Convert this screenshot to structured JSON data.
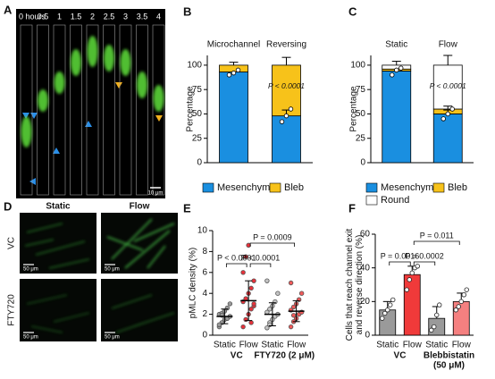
{
  "panel_labels": [
    "A",
    "B",
    "C",
    "D",
    "E",
    "F"
  ],
  "panel_a": {
    "time_labels": [
      "0 hours",
      "0.5",
      "1",
      "1.5",
      "2",
      "2.5",
      "3",
      "3.5",
      "4"
    ],
    "scale_bar": "10 μm"
  },
  "panel_d": {
    "columns": [
      "Static",
      "Flow"
    ],
    "rows": [
      "VC",
      "FTY720"
    ],
    "scale_bars": [
      "50 μm",
      "50 μm",
      "50 μm",
      "50 μm"
    ]
  },
  "chart_data": [
    {
      "type": "bar",
      "stacked": true,
      "categories": [
        "Microchannel",
        "Reversing"
      ],
      "ylabel": [
        "Percentage"
      ],
      "ylim": [
        0,
        110
      ],
      "yticks": [
        0,
        25,
        50,
        75,
        100
      ],
      "series": [
        {
          "name": "Mesenchymal",
          "color": "#1a8fe0",
          "values": [
            93,
            48
          ],
          "errors": [
            null,
            6
          ],
          "points": [
            [
              90,
              92,
              95
            ],
            [
              42,
              48,
              55
            ]
          ]
        },
        {
          "name": "Bleb",
          "color": "#f7c21a",
          "values": [
            7,
            52
          ],
          "errors": [
            3,
            8
          ]
        }
      ],
      "annotations": [
        "P < 0.0001"
      ]
    },
    {
      "type": "bar",
      "stacked": true,
      "categories": [
        "Static",
        "Flow"
      ],
      "ylabel": [
        "Percentage"
      ],
      "ylim": [
        0,
        110
      ],
      "yticks": [
        0,
        25,
        50,
        75,
        100
      ],
      "series": [
        {
          "name": "Mesenchymal",
          "color": "#1a8fe0",
          "values": [
            94,
            50
          ],
          "errors": [
            null,
            4
          ],
          "points": [
            [
              90,
              95,
              97
            ],
            [
              45,
              50,
              55
            ]
          ]
        },
        {
          "name": "Bleb",
          "color": "#f7c21a",
          "values": [
            2,
            5
          ],
          "errors": [
            null,
            3
          ]
        },
        {
          "name": "Round",
          "color": "#ffffff",
          "values": [
            4,
            45
          ],
          "errors": [
            4,
            10
          ]
        }
      ],
      "annotations": [
        "P < 0.0001"
      ]
    },
    {
      "type": "strip",
      "categories": [
        "Static",
        "Flow",
        "Static",
        "Flow"
      ],
      "groups": [
        [
          "VC"
        ],
        [
          "FTY720 (2 μM)"
        ]
      ],
      "ylabel": [
        "pMLC density (%)"
      ],
      "ylim": [
        0,
        10
      ],
      "yticks": [
        0,
        2,
        4,
        6,
        8,
        10
      ],
      "colors": [
        "#9a9a9a",
        "#e8313a",
        "#c4c4c4",
        "#f05a5a"
      ],
      "points": [
        [
          0.8,
          1.2,
          1.5,
          1.6,
          1.8,
          2.0,
          2.1,
          2.3,
          2.6,
          3.0,
          1.0,
          1.9
        ],
        [
          0.8,
          1.5,
          2.0,
          2.5,
          2.8,
          3.2,
          3.5,
          4.0,
          4.5,
          5.2,
          6.0,
          7.5,
          8.6,
          1.2,
          3.0
        ],
        [
          0.7,
          1.2,
          1.5,
          1.8,
          2.0,
          2.2,
          2.5,
          2.8,
          3.2,
          4.0,
          5.2,
          1.0
        ],
        [
          0.8,
          1.3,
          1.6,
          2.0,
          2.2,
          2.4,
          2.7,
          3.0,
          3.4,
          4.0,
          5.0,
          1.9
        ]
      ],
      "means": [
        1.8,
        3.3,
        2.0,
        2.3
      ],
      "sd": [
        0.7,
        1.9,
        1.1,
        1.0
      ],
      "comparisons": [
        {
          "between": [
            0,
            1
          ],
          "label": "P < 0.0001"
        },
        {
          "between": [
            1,
            2
          ],
          "label": "P < 0.0001"
        },
        {
          "between": [
            1,
            3
          ],
          "label": "P = 0.0009"
        }
      ]
    },
    {
      "type": "bar",
      "categories": [
        "Static",
        "Flow",
        "Static",
        "Flow"
      ],
      "groups": [
        [
          "VC"
        ],
        [
          "Blebbistatin",
          "(50 μM)"
        ]
      ],
      "ylabel": [
        "Cells that reach channel exit",
        "and reverse direction (%)"
      ],
      "ylim": [
        0,
        60
      ],
      "yticks": [
        0,
        20,
        40,
        60
      ],
      "colors": [
        "#9a9a9a",
        "#f03a3a",
        "#9a9a9a",
        "#f58080"
      ],
      "values": [
        15,
        36,
        10,
        20
      ],
      "errors": [
        5,
        5,
        7,
        5
      ],
      "points": [
        [
          10,
          13,
          15,
          18,
          21
        ],
        [
          27,
          33,
          37,
          40,
          41
        ],
        [
          3,
          5,
          12,
          18
        ],
        [
          15,
          17,
          20,
          24,
          27
        ]
      ],
      "comparisons": [
        {
          "between": [
            0,
            1
          ],
          "label": "P = 0.0016"
        },
        {
          "between": [
            1,
            2
          ],
          "label": "P = 0.0002"
        },
        {
          "between": [
            1,
            3
          ],
          "label": "P = 0.011"
        }
      ]
    }
  ]
}
